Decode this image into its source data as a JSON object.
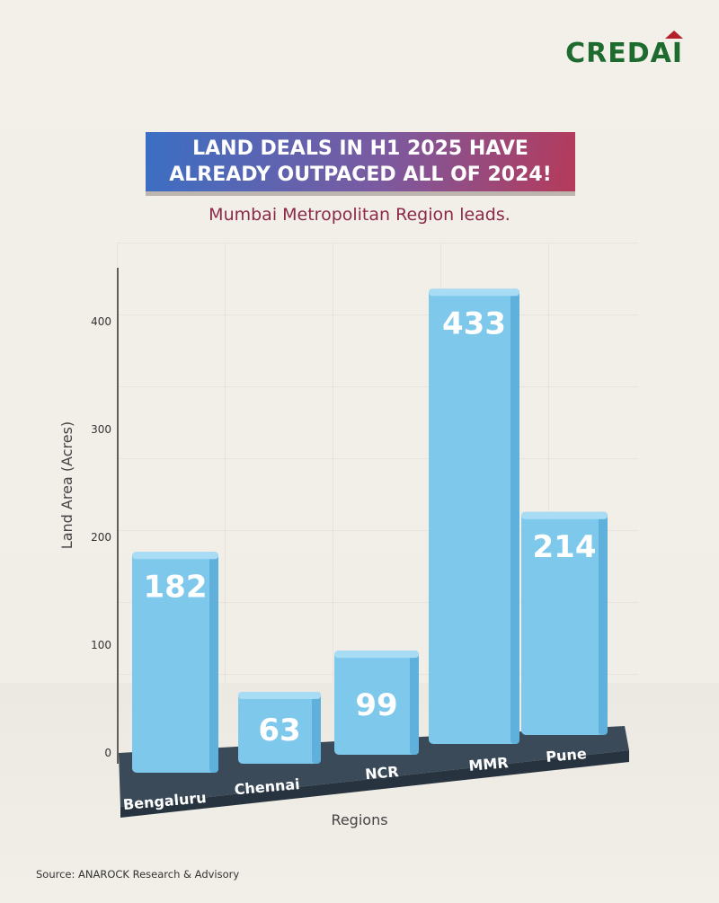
{
  "logo": "CREDAI",
  "banner": {
    "line1": "LAND DEALS IN H1 2025 HAVE",
    "line2": "ALREADY OUTPACED ALL OF 2024!"
  },
  "subtitle": "Mumbai Metropolitan Region leads.",
  "source": "Source: ANAROCK Research & Advisory",
  "chart_data": {
    "type": "bar",
    "title": "LAND DEALS IN H1 2025 HAVE ALREADY OUTPACED ALL OF 2024!",
    "subtitle": "Mumbai Metropolitan Region leads.",
    "categories": [
      "Bengaluru",
      "Chennai",
      "NCR",
      "MMR",
      "Pune"
    ],
    "values": [
      182,
      63,
      99,
      433,
      214
    ],
    "xlabel": "Regions",
    "ylabel": "Land Area (Acres)",
    "yticks": [
      0,
      100,
      200,
      300,
      400
    ],
    "ylim": [
      0,
      450
    ],
    "bar_color": "#7ec8ec",
    "grid": true
  }
}
